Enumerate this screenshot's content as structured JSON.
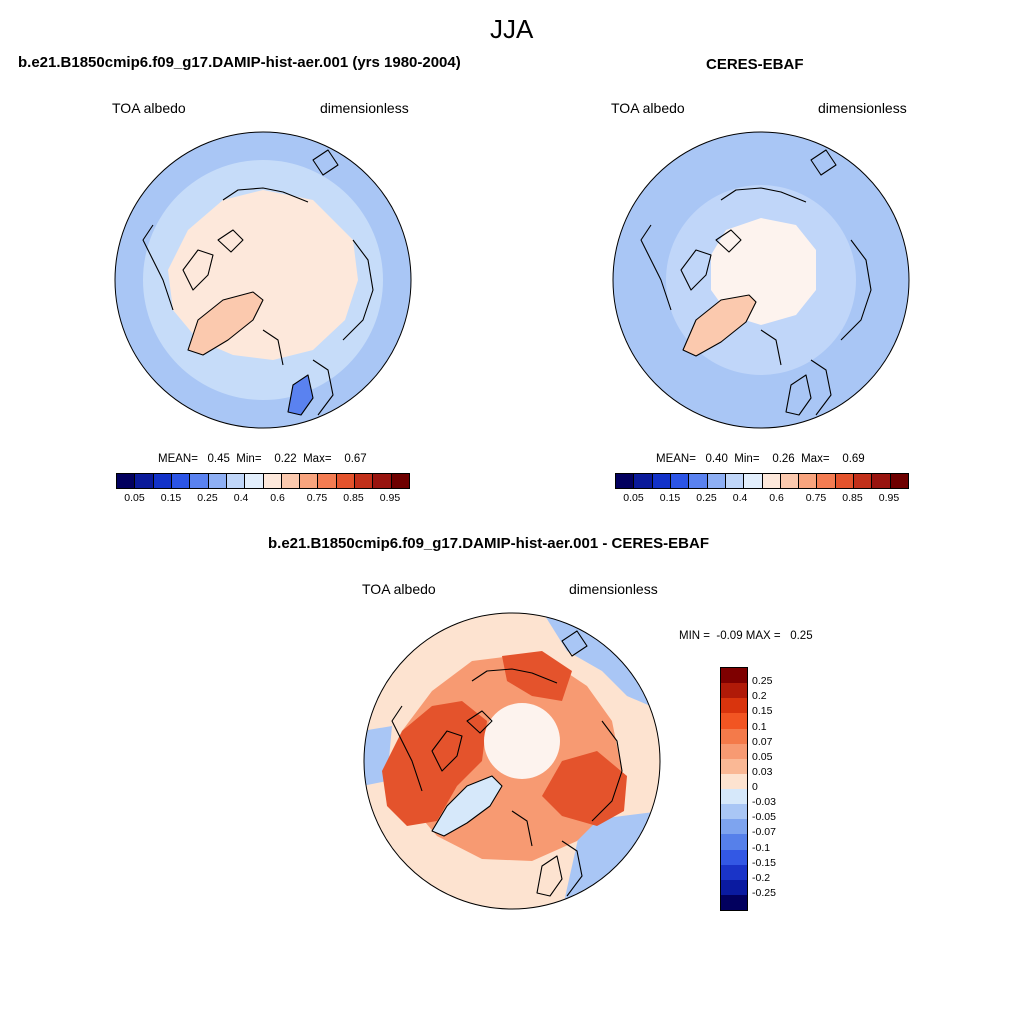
{
  "season_title": "JJA",
  "panels": [
    {
      "title": "b.e21.B1850cmip6.f09_g17.DAMIP-hist-aer.001 (yrs 1980-2004)",
      "left_label": "TOA albedo",
      "right_label": "dimensionless",
      "stats_text": "MEAN=   0.45  Min=    0.22  Max=    0.67"
    },
    {
      "title": "CERES-EBAF",
      "left_label": "TOA albedo",
      "right_label": "dimensionless",
      "stats_text": "MEAN=   0.40  Min=    0.26  Max=    0.69"
    }
  ],
  "diff_panel": {
    "title": "b.e21.B1850cmip6.f09_g17.DAMIP-hist-aer.001 - CERES-EBAF",
    "left_label": "TOA albedo",
    "right_label": "dimensionless",
    "stats_text": "MIN =  -0.09 MAX =   0.25"
  },
  "colorbar_abs": {
    "ticks": [
      "0.05",
      "0.15",
      "0.25",
      "0.4",
      "0.6",
      "0.75",
      "0.85",
      "0.95"
    ],
    "colors": [
      "#02005e",
      "#0a1a9a",
      "#1232c8",
      "#2c55e6",
      "#5a82f0",
      "#8eaff4",
      "#c0d6f9",
      "#e2eefc",
      "#fde8db",
      "#fbc9ae",
      "#f8a47e",
      "#f47c52",
      "#e4532c",
      "#c2301a",
      "#98140f",
      "#6e0000"
    ]
  },
  "colorbar_diff": {
    "ticks": [
      "0.25",
      "0.2",
      "0.15",
      "0.1",
      "0.07",
      "0.05",
      "0.03",
      "0",
      "-0.03",
      "-0.05",
      "-0.07",
      "-0.1",
      "-0.15",
      "-0.2",
      "-0.25"
    ],
    "colors": [
      "#7e0000",
      "#b01a08",
      "#d9340d",
      "#f25522",
      "#f47a4a",
      "#f79a72",
      "#fab895",
      "#fde3d0",
      "#d6e8fa",
      "#a9c6f5",
      "#7ea4ef",
      "#5680ea",
      "#3358e4",
      "#1a34c8",
      "#0a1aa0",
      "#02005e"
    ]
  },
  "map_colors": {
    "ocean_model": "#c6dcf9",
    "ocean_model_outer": "#a9c6f5",
    "ocean_ceres": "#a9c6f5",
    "arctic_model": "#fde8db",
    "greenland_model": "#fbc9ae",
    "arctic_ceres": "#fdf3ee",
    "greenland_ceres": "#fbc9ae",
    "diff_base": "#fde3d0",
    "diff_strong": "#e4532c",
    "diff_mid": "#f79a72",
    "diff_blue": "#a9c6f5"
  }
}
